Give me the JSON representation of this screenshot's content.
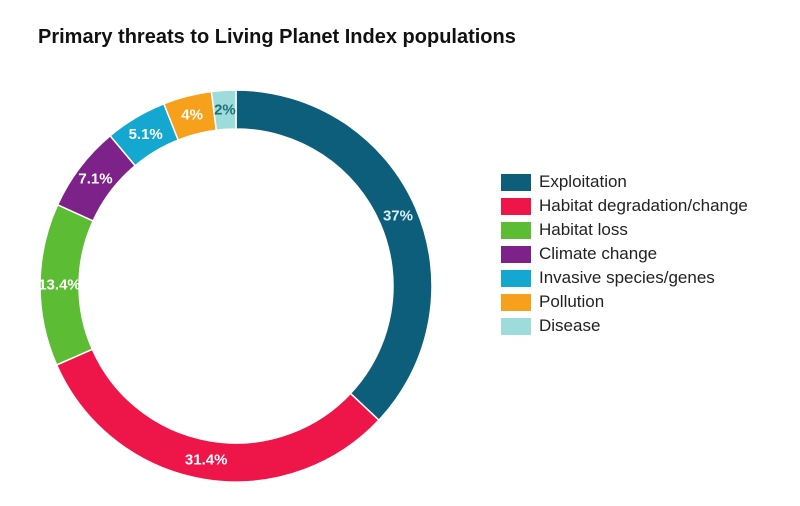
{
  "chart_data": {
    "type": "pie",
    "donut": true,
    "title": "Primary threats to Living Planet Index populations",
    "legend_position": "right",
    "slices": [
      {
        "name": "Exploitation",
        "value": 37,
        "label": "37%",
        "color": "#0d5e7a",
        "label_color": "#d9f1f8"
      },
      {
        "name": "Habitat degradation/change",
        "value": 31.4,
        "label": "31.4%",
        "color": "#ee1649",
        "label_color": "#ffffff"
      },
      {
        "name": "Habitat loss",
        "value": 13.4,
        "label": "13.4%",
        "color": "#5cbc34",
        "label_color": "#ffffff"
      },
      {
        "name": "Climate change",
        "value": 7.1,
        "label": "7.1%",
        "color": "#7d2289",
        "label_color": "#ffffff"
      },
      {
        "name": "Invasive species/genes",
        "value": 5.1,
        "label": "5.1%",
        "color": "#14a7cf",
        "label_color": "#ffffff"
      },
      {
        "name": "Pollution",
        "value": 4,
        "label": "4%",
        "color": "#f7a01c",
        "label_color": "#ffffff"
      },
      {
        "name": "Disease",
        "value": 2,
        "label": "2%",
        "color": "#9edcdb",
        "label_color": "#1d6f78"
      }
    ]
  }
}
